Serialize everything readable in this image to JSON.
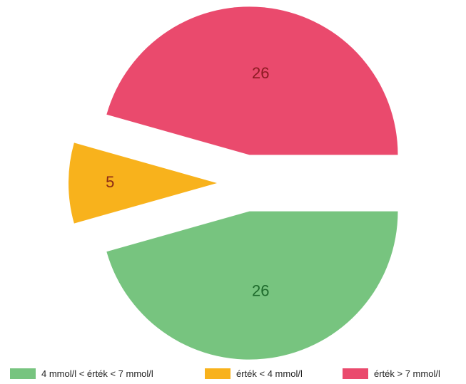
{
  "chart_data": {
    "type": "pie",
    "slices": [
      {
        "label": "4 mmol/l < érték < 7 mmol/l",
        "value": 26,
        "color": "#77c47f",
        "text_color": "#1e6b2c",
        "exploded": true
      },
      {
        "label": "érték < 4 mmol/l",
        "value": 5,
        "color": "#f8b21c",
        "text_color": "#8c2a16",
        "exploded": true
      },
      {
        "label": "érték > 7 mmol/l",
        "value": 26,
        "color": "#ea4a6d",
        "text_color": "#8c1a22",
        "exploded": true
      }
    ],
    "legend_position": "bottom"
  }
}
